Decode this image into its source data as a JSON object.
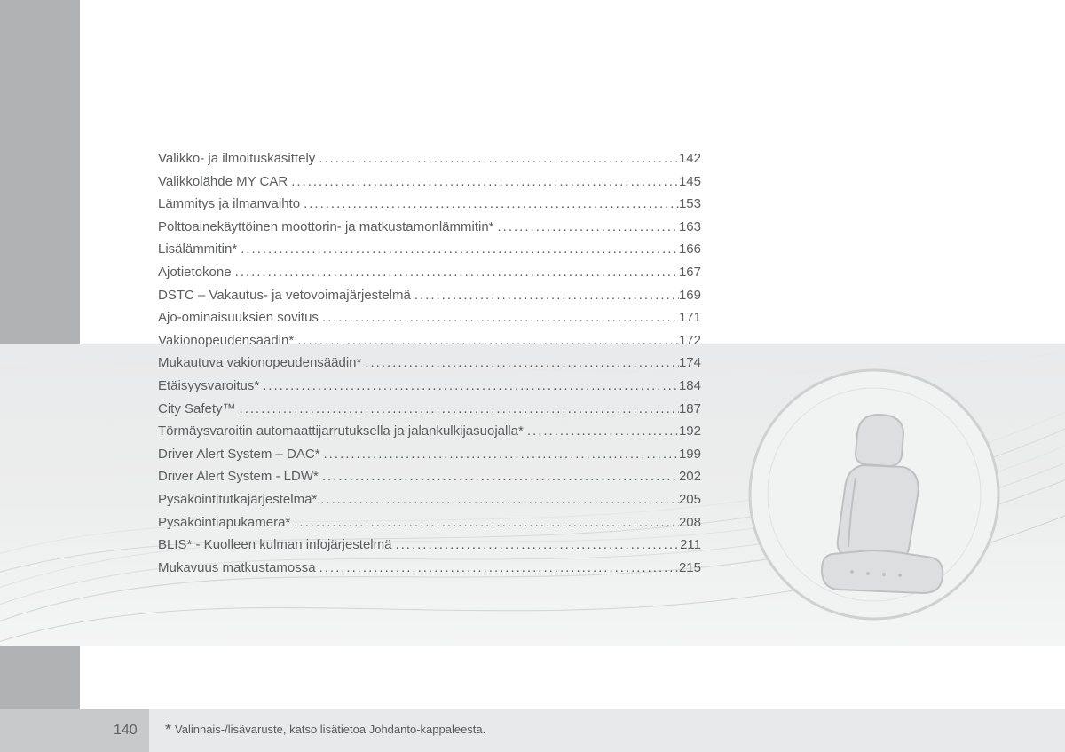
{
  "page": {
    "number": "140",
    "footnote_star": "*",
    "footnote_text": "Valinnais-/lisävaruste, katso lisätietoa Johdanto-kappaleesta."
  },
  "colors": {
    "left_bar": "#b1b2b4",
    "band_top": "#e9eaeb",
    "band_bottom": "#f4f5f5",
    "text": "#5b5c5e",
    "footer_band": "#e8e9ea",
    "page_box": "#c8c9cb",
    "wave_line": "#d7d8d9",
    "medallion_ring": "#cfd0d1",
    "medallion_fill": "#f1f2f2",
    "seat_fill": "#dddedf",
    "seat_stroke": "#bfc0c1"
  },
  "toc": {
    "items": [
      {
        "title": "Valikko- ja ilmoituskäsittely",
        "page": "142"
      },
      {
        "title": "Valikkolähde MY CAR",
        "page": "145"
      },
      {
        "title": "Lämmitys ja ilmanvaihto",
        "page": "153"
      },
      {
        "title": "Polttoainekäyttöinen moottorin- ja matkustamonlämmitin*",
        "page": "163"
      },
      {
        "title": "Lisälämmitin*",
        "page": "166"
      },
      {
        "title": "Ajotietokone",
        "page": "167"
      },
      {
        "title": "DSTC – Vakautus- ja vetovoimajärjestelmä",
        "page": "169"
      },
      {
        "title": "Ajo-ominaisuuksien sovitus",
        "page": "171"
      },
      {
        "title": "Vakionopeudensäädin*",
        "page": "172"
      },
      {
        "title": "Mukautuva vakionopeudensäädin*",
        "page": "174"
      },
      {
        "title": "Etäisyysvaroitus*",
        "page": "184"
      },
      {
        "title": "City Safety™",
        "page": "187"
      },
      {
        "title": "Törmäysvaroitin automaattijarrutuksella ja jalankulkijasuojalla*",
        "page": "192"
      },
      {
        "title": "Driver Alert System – DAC*",
        "page": "199"
      },
      {
        "title": "Driver Alert System - LDW*",
        "page": "202"
      },
      {
        "title": "Pysäköintitutkajärjestelmä*",
        "page": "205"
      },
      {
        "title": "Pysäköintiapukamera*",
        "page": "208"
      },
      {
        "title": "BLIS* - Kuolleen kulman infojärjestelmä",
        "page": "211"
      },
      {
        "title": "Mukavuus matkustamossa",
        "page": "215"
      }
    ]
  }
}
